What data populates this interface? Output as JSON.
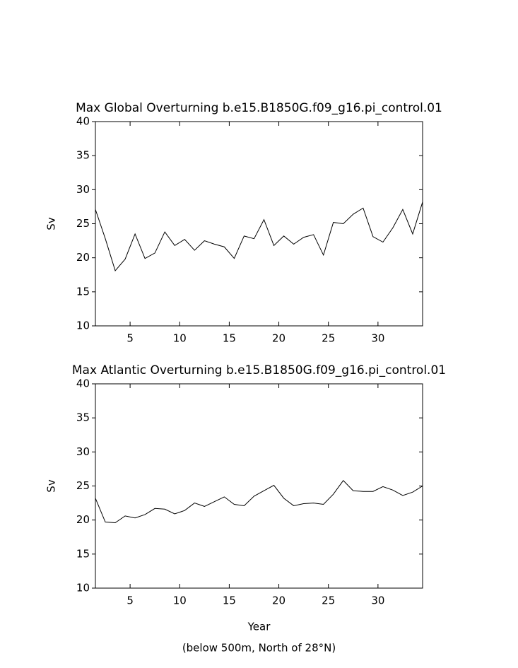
{
  "chart_data": [
    {
      "type": "line",
      "title": "Max Global Overturning b.e15.B1850G.f09_g16.pi_control.01",
      "ylabel": "Sv",
      "x": [
        1.5,
        2.5,
        3.5,
        4.5,
        5.5,
        6.5,
        7.5,
        8.5,
        9.5,
        10.5,
        11.5,
        12.5,
        13.5,
        14.5,
        15.5,
        16.5,
        17.5,
        18.5,
        19.5,
        20.5,
        21.5,
        22.5,
        23.5,
        24.5,
        25.5,
        26.5,
        27.5,
        28.5,
        29.5,
        30.5,
        31.5,
        32.5,
        33.5,
        34.5
      ],
      "series": [
        {
          "color": "#000000",
          "values": [
            27.1,
            22.8,
            18.1,
            19.8,
            23.5,
            19.9,
            20.7,
            23.8,
            21.8,
            22.7,
            21.1,
            22.5,
            22.0,
            21.6,
            19.9,
            23.2,
            22.8,
            25.6,
            21.8,
            23.2,
            22.0,
            23.0,
            23.4,
            20.4,
            25.2,
            25.0,
            26.4,
            27.3,
            23.1,
            22.3,
            24.4,
            27.1,
            23.5,
            28.2
          ]
        }
      ],
      "xlim": [
        1.5,
        34.5
      ],
      "xticks": [
        5,
        10,
        15,
        20,
        25,
        30
      ],
      "ylim": [
        10,
        40
      ],
      "yticks": [
        10,
        15,
        20,
        25,
        30,
        35,
        40
      ]
    },
    {
      "type": "line",
      "title": "Max Atlantic Overturning b.e15.B1850G.f09_g16.pi_control.01",
      "ylabel": "Sv",
      "xlabel": "Year",
      "annotation": "(below 500m, North of 28°N)",
      "x": [
        1.5,
        2.5,
        3.5,
        4.5,
        5.5,
        6.5,
        7.5,
        8.5,
        9.5,
        10.5,
        11.5,
        12.5,
        13.5,
        14.5,
        15.5,
        16.5,
        17.5,
        18.5,
        19.5,
        20.5,
        21.5,
        22.5,
        23.5,
        24.5,
        25.5,
        26.5,
        27.5,
        28.5,
        29.5,
        30.5,
        31.5,
        32.5,
        33.5,
        34.5
      ],
      "series": [
        {
          "color": "#000000",
          "values": [
            23.2,
            19.7,
            19.6,
            20.6,
            20.3,
            20.8,
            21.7,
            21.6,
            20.9,
            21.4,
            22.5,
            22.0,
            22.7,
            23.4,
            22.3,
            22.1,
            23.5,
            24.3,
            25.1,
            23.2,
            22.1,
            22.4,
            22.5,
            22.3,
            23.8,
            25.8,
            24.3,
            24.2,
            24.2,
            24.9,
            24.4,
            23.6,
            24.1,
            25.0
          ]
        }
      ],
      "xlim": [
        1.5,
        34.5
      ],
      "xticks": [
        5,
        10,
        15,
        20,
        25,
        30
      ],
      "ylim": [
        10,
        40
      ],
      "yticks": [
        10,
        15,
        20,
        25,
        30,
        35,
        40
      ]
    }
  ]
}
